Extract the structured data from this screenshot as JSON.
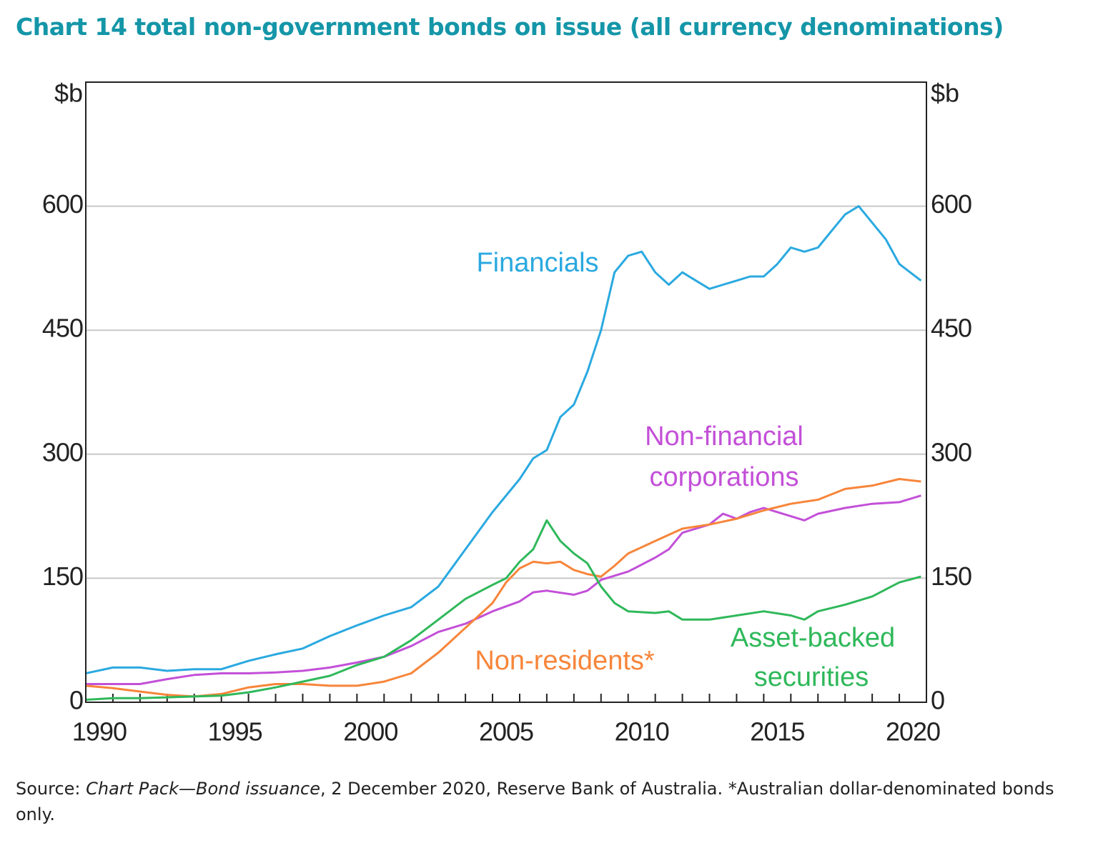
{
  "chart_data": {
    "type": "line",
    "title": "Chart 14 total non-government bonds on issue (all currency denominations)",
    "y_unit": "$b",
    "xlim": [
      1990,
      2021
    ],
    "xticks": [
      {
        "value": 1990.5,
        "label": "1990"
      },
      {
        "value": 1995.5,
        "label": "1995"
      },
      {
        "value": 2000.5,
        "label": "2000"
      },
      {
        "value": 2005.5,
        "label": "2005"
      },
      {
        "value": 2010.5,
        "label": "2010"
      },
      {
        "value": 2015.5,
        "label": "2015"
      },
      {
        "value": 2020.5,
        "label": "2020"
      }
    ],
    "xminorticks": [
      1991,
      1992,
      1993,
      1994,
      1995,
      1996,
      1997,
      1998,
      1999,
      2000,
      2001,
      2002,
      2003,
      2004,
      2005,
      2006,
      2007,
      2008,
      2009,
      2010,
      2011,
      2012,
      2013,
      2014,
      2015,
      2016,
      2017,
      2018,
      2019,
      2020
    ],
    "ylim": [
      0,
      750
    ],
    "yticks": [
      0,
      150,
      300,
      450,
      600
    ],
    "y2lim": [
      0,
      750
    ],
    "y2ticks": [
      0,
      150,
      300,
      450,
      600
    ],
    "grid": true,
    "series": [
      {
        "name": "Financials",
        "color": "#2aa9e0",
        "x": [
          1990,
          1991,
          1992,
          1993,
          1994,
          1995,
          1996,
          1997,
          1998,
          1999,
          2000,
          2001,
          2002,
          2003,
          2004,
          2005,
          2006,
          2006.5,
          2007,
          2007.5,
          2008,
          2008.5,
          2009,
          2009.5,
          2010,
          2010.5,
          2011,
          2011.5,
          2012,
          2012.5,
          2013,
          2013.5,
          2014,
          2014.5,
          2015,
          2015.5,
          2016,
          2016.5,
          2017,
          2017.5,
          2018,
          2018.5,
          2019,
          2019.5,
          2020,
          2020.8
        ],
        "values": [
          35,
          42,
          42,
          38,
          40,
          40,
          50,
          58,
          65,
          80,
          93,
          105,
          115,
          140,
          185,
          230,
          270,
          295,
          305,
          345,
          360,
          400,
          450,
          520,
          540,
          545,
          520,
          505,
          520,
          510,
          500,
          505,
          510,
          515,
          515,
          530,
          550,
          545,
          550,
          570,
          590,
          600,
          580,
          560,
          530,
          510
        ]
      },
      {
        "name": "Non-financial corporations",
        "color": "#c350d8",
        "x": [
          1990,
          1991,
          1992,
          1993,
          1994,
          1995,
          1996,
          1997,
          1998,
          1999,
          2000,
          2001,
          2002,
          2003,
          2004,
          2005,
          2006,
          2006.5,
          2007,
          2008,
          2008.5,
          2009,
          2010,
          2011,
          2011.5,
          2012,
          2013,
          2013.5,
          2014,
          2014.5,
          2015,
          2015.5,
          2016,
          2016.5,
          2017,
          2018,
          2019,
          2020,
          2020.8
        ],
        "values": [
          22,
          22,
          22,
          28,
          33,
          35,
          35,
          36,
          38,
          42,
          48,
          55,
          68,
          85,
          95,
          110,
          122,
          133,
          135,
          130,
          135,
          148,
          158,
          175,
          185,
          205,
          215,
          228,
          222,
          230,
          235,
          230,
          225,
          220,
          228,
          235,
          240,
          242,
          250
        ]
      },
      {
        "name": "Non-residents*",
        "color": "#f7853a",
        "x": [
          1990,
          1991,
          1992,
          1993,
          1994,
          1995,
          1996,
          1997,
          1998,
          1999,
          2000,
          2001,
          2002,
          2003,
          2004,
          2005,
          2005.5,
          2006,
          2006.5,
          2007,
          2007.5,
          2008,
          2008.5,
          2009,
          2009.5,
          2010,
          2011,
          2012,
          2013,
          2014,
          2015,
          2016,
          2017,
          2018,
          2019,
          2020,
          2020.8
        ],
        "values": [
          20,
          17,
          13,
          9,
          7,
          10,
          18,
          22,
          22,
          20,
          20,
          25,
          35,
          60,
          90,
          120,
          145,
          162,
          170,
          168,
          170,
          160,
          155,
          152,
          165,
          180,
          195,
          210,
          215,
          222,
          232,
          240,
          245,
          258,
          262,
          270,
          267
        ]
      },
      {
        "name": "Asset-backed securities",
        "color": "#2fb85a",
        "x": [
          1990,
          1991,
          1992,
          1993,
          1994,
          1995,
          1996,
          1997,
          1998,
          1999,
          2000,
          2001,
          2002,
          2003,
          2004,
          2005,
          2005.5,
          2006,
          2006.5,
          2007,
          2007.5,
          2008,
          2008.5,
          2009,
          2009.5,
          2010,
          2011,
          2011.5,
          2012,
          2013,
          2014,
          2015,
          2016,
          2016.5,
          2017,
          2018,
          2019,
          2020,
          2020.8
        ],
        "values": [
          3,
          5,
          5,
          6,
          7,
          8,
          12,
          18,
          25,
          32,
          45,
          55,
          75,
          100,
          125,
          142,
          150,
          170,
          185,
          220,
          195,
          180,
          168,
          140,
          120,
          110,
          108,
          110,
          100,
          100,
          105,
          110,
          105,
          100,
          110,
          118,
          128,
          145,
          152
        ]
      }
    ],
    "annotations": [
      "Financials",
      "Non-financial",
      "corporations",
      "Non-residents*",
      "Asset-backed",
      "securities"
    ],
    "source": {
      "lead": "Source: ",
      "italic": "Chart Pack—Bond issuance",
      "rest": ", 2 December 2020, Reserve Bank of Australia. *Australian dollar-denominated bonds only."
    }
  }
}
